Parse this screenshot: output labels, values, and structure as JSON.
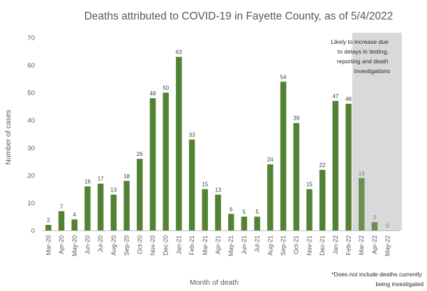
{
  "chart_data": {
    "type": "bar",
    "title": "Deaths attributed to COVID-19 in Fayette County, as of 5/4/2022",
    "xlabel": "Month of death",
    "ylabel": "Number of cases",
    "ylim": [
      0,
      70
    ],
    "yticks": [
      0,
      10,
      20,
      30,
      40,
      50,
      60,
      70
    ],
    "grid": false,
    "categories": [
      "Mar-20",
      "Apr-20",
      "May-20",
      "Jun-20",
      "Jul-20",
      "Aug-20",
      "Sep-20",
      "Oct-20",
      "Nov-20",
      "Dec-20",
      "Jan-21",
      "Feb-21",
      "Mar-21",
      "Apr-21",
      "May-21",
      "Jun-21",
      "Jul-21",
      "Aug-21",
      "Sep-21",
      "Oct-21",
      "Nov-21",
      "Dec-21",
      "Jan-22",
      "Feb-22",
      "Mar-22",
      "Apr-22",
      "May-22"
    ],
    "values": [
      2,
      7,
      4,
      16,
      17,
      13,
      18,
      26,
      48,
      50,
      63,
      33,
      15,
      13,
      6,
      5,
      5,
      24,
      54,
      39,
      15,
      22,
      47,
      46,
      19,
      3,
      0
    ],
    "highlight_region": {
      "start_category": "Mar-22",
      "end_category": "May-22",
      "label_lines": [
        "Likely to increase due",
        "to delays in testing,",
        "reporting and death",
        "investigations"
      ]
    },
    "footnote_lines": [
      "*Does not include deaths currently",
      "being investigated"
    ],
    "colors": {
      "bar": "#548235",
      "bar_faded": "#6e8f52",
      "highlight": "#d9d9d9",
      "label": "#404040",
      "label_faded": "#7f7f7f"
    }
  }
}
